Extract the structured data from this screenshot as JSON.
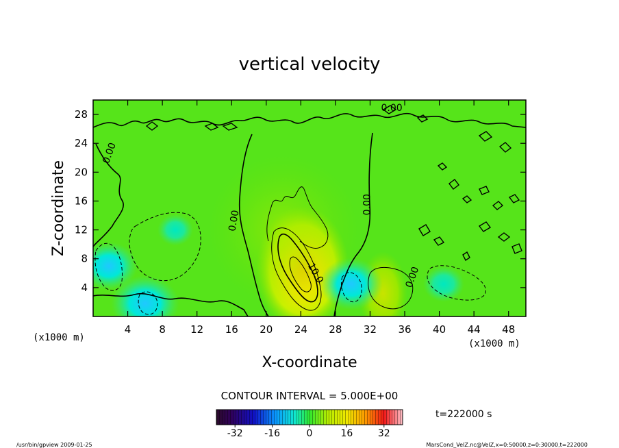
{
  "chart_data": {
    "type": "heatmap",
    "title": "vertical velocity",
    "xlabel": "X-coordinate",
    "ylabel": "Z-coordinate",
    "x_unit": "(x1000 m)",
    "y_unit": "(x1000 m)",
    "x_ticks": [
      4,
      8,
      12,
      16,
      20,
      24,
      28,
      32,
      36,
      40,
      44,
      48
    ],
    "y_ticks": [
      4,
      8,
      12,
      16,
      20,
      24,
      28
    ],
    "xlim": [
      0,
      50
    ],
    "ylim": [
      0,
      30
    ],
    "contour_interval_text": "CONTOUR INTERVAL = 5.000E+00",
    "contour_labels": [
      {
        "text": "0.00",
        "x": 2.2,
        "y": 22.5,
        "angle": -70
      },
      {
        "text": "0.00",
        "x": 16.6,
        "y": 13.2,
        "angle": -80
      },
      {
        "text": "0.00",
        "x": 32.0,
        "y": 15.5,
        "angle": -90
      },
      {
        "text": "0.00",
        "x": 34.5,
        "y": 28.5,
        "angle": 0
      },
      {
        "text": "0.00",
        "x": 37.2,
        "y": 5.3,
        "angle": -70
      },
      {
        "text": "10.0",
        "x": 25.4,
        "y": 5.8,
        "angle": 60
      }
    ],
    "features": [
      {
        "kind": "updraft",
        "x": 24.2,
        "y": 6.5,
        "peak": 15
      },
      {
        "kind": "updraft",
        "x": 33.5,
        "y": 3.2,
        "peak": 6
      },
      {
        "kind": "downdraft",
        "x": 6.0,
        "y": 1.8,
        "peak": -9
      },
      {
        "kind": "downdraft",
        "x": 1.8,
        "y": 7.0,
        "peak": -7
      },
      {
        "kind": "downdraft",
        "x": 29.8,
        "y": 4.5,
        "peak": -8
      },
      {
        "kind": "downdraft",
        "x": 40.5,
        "y": 4.5,
        "peak": -4
      },
      {
        "kind": "downdraft",
        "x": 9.5,
        "y": 12.0,
        "peak": -3
      }
    ],
    "colorbar": {
      "ticks": [
        -32,
        -16,
        0,
        16,
        32
      ],
      "range": [
        -40,
        40
      ]
    },
    "time_label": "t=222000 s",
    "grid": false
  },
  "footer": {
    "left": "/usr/bin/gpview  2009-01-25",
    "right": "MarsCond_VelZ.nc@VelZ,x=0:50000,z=0:30000,t=222000"
  }
}
